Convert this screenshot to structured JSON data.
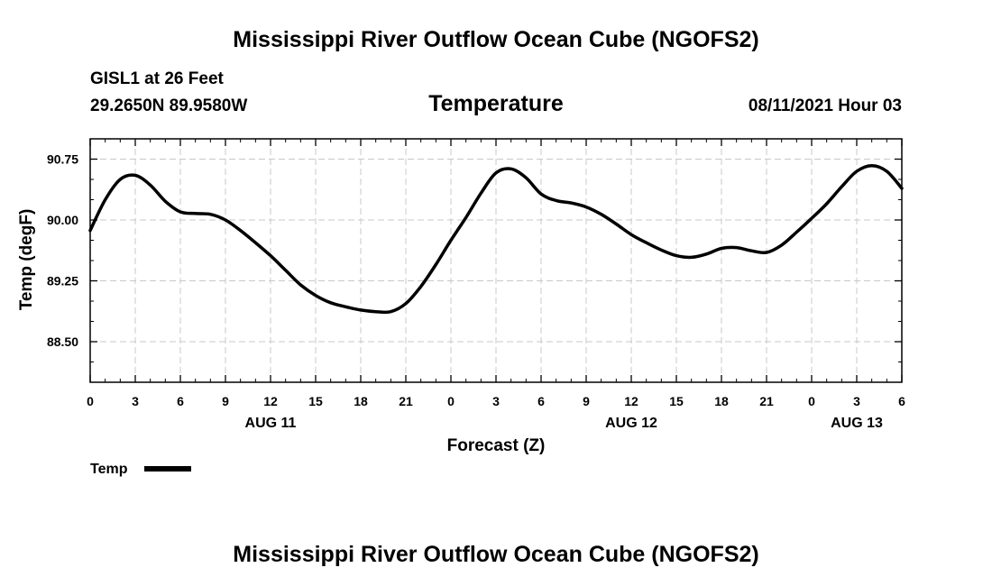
{
  "page": {
    "title_top": "Mississippi River Outflow Ocean Cube (NGOFS2)",
    "title_bottom": "Mississippi River Outflow Ocean Cube (NGOFS2)",
    "station": "GISL1 at 26 Feet",
    "coords": "29.2650N  89.9580W",
    "variable": "Temperature",
    "datetime": "08/11/2021 Hour 03"
  },
  "chart_data": {
    "type": "line",
    "title": "Temperature",
    "xlabel": "Forecast (Z)",
    "ylabel": "Temp (degF)",
    "xlim": [
      0,
      54
    ],
    "ylim": [
      88.0,
      91.0
    ],
    "yticks": [
      90.75,
      90.0,
      89.25,
      88.5
    ],
    "ytick_labels": [
      "90.75",
      "90.00",
      "89.25",
      "88.50"
    ],
    "xticks": [
      0,
      3,
      6,
      9,
      12,
      15,
      18,
      21,
      24,
      27,
      30,
      33,
      36,
      39,
      42,
      45,
      48,
      51,
      54
    ],
    "xtick_labels": [
      "0",
      "3",
      "6",
      "9",
      "12",
      "15",
      "18",
      "21",
      "0",
      "3",
      "6",
      "9",
      "12",
      "15",
      "18",
      "21",
      "0",
      "3",
      "6"
    ],
    "date_labels": [
      {
        "x": 12,
        "label": "AUG 11"
      },
      {
        "x": 36,
        "label": "AUG 12"
      },
      {
        "x": 51,
        "label": "AUG 13"
      }
    ],
    "grid": true,
    "legend": "bottom-left",
    "series": [
      {
        "name": "Temp",
        "color": "#000000",
        "x": [
          0,
          1,
          2,
          3,
          4,
          5,
          6,
          7,
          8,
          9,
          10,
          11,
          12,
          13,
          14,
          15,
          16,
          17,
          18,
          19,
          20,
          21,
          22,
          23,
          24,
          25,
          26,
          27,
          28,
          29,
          30,
          31,
          32,
          33,
          34,
          35,
          36,
          37,
          38,
          39,
          40,
          41,
          42,
          43,
          44,
          45,
          46,
          47,
          48,
          49,
          50,
          51,
          52,
          53,
          54
        ],
        "y": [
          89.87,
          90.25,
          90.5,
          90.55,
          90.43,
          90.23,
          90.1,
          90.08,
          90.07,
          90.0,
          89.87,
          89.72,
          89.56,
          89.38,
          89.2,
          89.07,
          88.98,
          88.93,
          88.89,
          88.87,
          88.87,
          88.97,
          89.18,
          89.45,
          89.75,
          90.03,
          90.33,
          90.58,
          90.63,
          90.52,
          90.32,
          90.24,
          90.21,
          90.16,
          90.07,
          89.95,
          89.82,
          89.72,
          89.63,
          89.56,
          89.54,
          89.58,
          89.65,
          89.66,
          89.62,
          89.6,
          89.69,
          89.85,
          90.02,
          90.2,
          90.41,
          90.6,
          90.67,
          90.6,
          90.39
        ]
      }
    ]
  }
}
